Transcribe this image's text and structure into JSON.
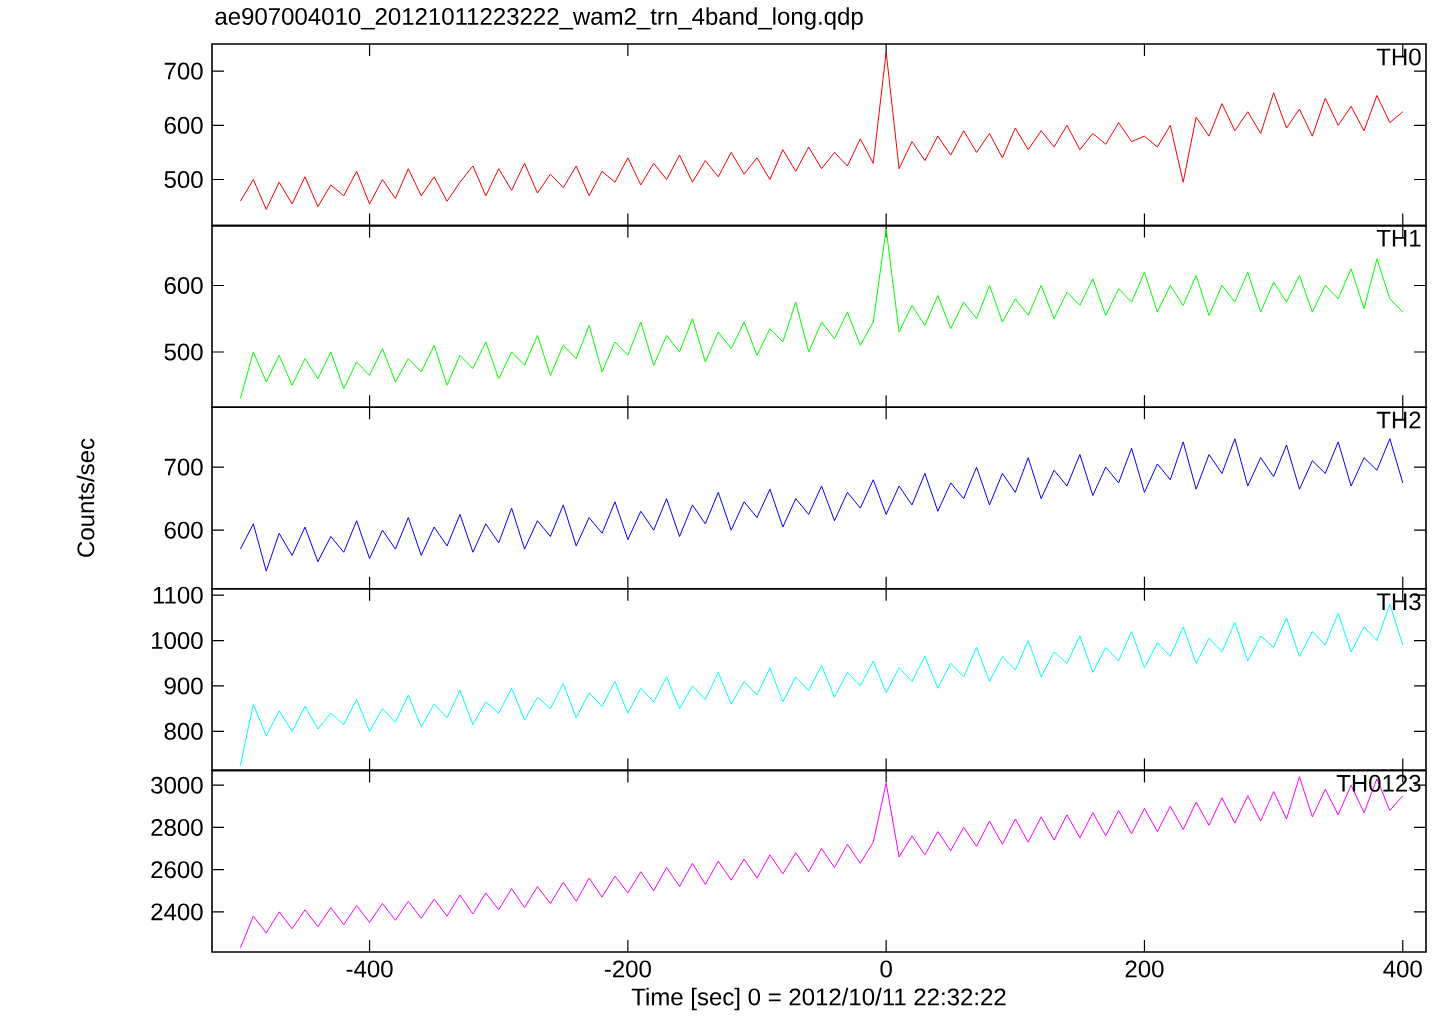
{
  "chart_data": [
    {
      "type": "line",
      "title": "ae907004010_20121011223222_wam2_trn_4band_long.qdp",
      "annotations": [
        "TH0"
      ],
      "color": "#ff0000",
      "tick_labels": "y",
      "xlim": [
        -522,
        418
      ],
      "xticks": [
        -400,
        -200,
        0,
        200,
        400
      ],
      "ylim": [
        415,
        750
      ],
      "yticks": [
        500,
        600,
        700
      ],
      "x": [
        -500,
        -490,
        -480,
        -470,
        -460,
        -450,
        -440,
        -430,
        -420,
        -410,
        -400,
        -390,
        -380,
        -370,
        -360,
        -350,
        -340,
        -330,
        -320,
        -310,
        -300,
        -290,
        -280,
        -270,
        -260,
        -250,
        -240,
        -230,
        -220,
        -210,
        -200,
        -190,
        -180,
        -170,
        -160,
        -150,
        -140,
        -130,
        -120,
        -110,
        -100,
        -90,
        -80,
        -70,
        -60,
        -50,
        -40,
        -30,
        -20,
        -10,
        0,
        10,
        20,
        30,
        40,
        50,
        60,
        70,
        80,
        90,
        100,
        110,
        120,
        130,
        140,
        150,
        160,
        170,
        180,
        190,
        200,
        210,
        220,
        230,
        240,
        250,
        260,
        270,
        280,
        290,
        300,
        310,
        320,
        330,
        340,
        350,
        360,
        370,
        380,
        390,
        400
      ],
      "values": [
        460,
        500,
        445,
        495,
        455,
        505,
        450,
        490,
        470,
        515,
        455,
        500,
        465,
        520,
        470,
        505,
        460,
        495,
        525,
        470,
        520,
        480,
        530,
        475,
        510,
        485,
        525,
        470,
        515,
        495,
        540,
        490,
        530,
        500,
        545,
        495,
        535,
        505,
        550,
        510,
        540,
        500,
        555,
        515,
        560,
        520,
        550,
        525,
        575,
        530,
        735,
        520,
        570,
        535,
        580,
        545,
        590,
        550,
        585,
        540,
        595,
        555,
        590,
        560,
        600,
        555,
        585,
        565,
        605,
        570,
        580,
        560,
        600,
        495,
        615,
        580,
        640,
        590,
        625,
        585,
        660,
        595,
        630,
        580,
        650,
        600,
        635,
        590,
        655,
        605,
        625
      ]
    },
    {
      "type": "line",
      "annotations": [
        "TH1"
      ],
      "color": "#00ff00",
      "tick_labels": "y",
      "xlim": [
        -522,
        418
      ],
      "xticks": [
        -400,
        -200,
        0,
        200,
        400
      ],
      "ylim": [
        417,
        690
      ],
      "yticks": [
        500,
        600
      ],
      "x": [
        -500,
        -490,
        -480,
        -470,
        -460,
        -450,
        -440,
        -430,
        -420,
        -410,
        -400,
        -390,
        -380,
        -370,
        -360,
        -350,
        -340,
        -330,
        -320,
        -310,
        -300,
        -290,
        -280,
        -270,
        -260,
        -250,
        -240,
        -230,
        -220,
        -210,
        -200,
        -190,
        -180,
        -170,
        -160,
        -150,
        -140,
        -130,
        -120,
        -110,
        -100,
        -90,
        -80,
        -70,
        -60,
        -50,
        -40,
        -30,
        -20,
        -10,
        0,
        10,
        20,
        30,
        40,
        50,
        60,
        70,
        80,
        90,
        100,
        110,
        120,
        130,
        140,
        150,
        160,
        170,
        180,
        190,
        200,
        210,
        220,
        230,
        240,
        250,
        260,
        270,
        280,
        290,
        300,
        310,
        320,
        330,
        340,
        350,
        360,
        370,
        380,
        390,
        400
      ],
      "values": [
        430,
        500,
        455,
        495,
        450,
        490,
        460,
        500,
        445,
        485,
        465,
        505,
        455,
        490,
        470,
        510,
        450,
        495,
        475,
        515,
        460,
        500,
        480,
        525,
        465,
        510,
        490,
        540,
        470,
        515,
        495,
        545,
        480,
        525,
        500,
        550,
        485,
        530,
        505,
        545,
        495,
        535,
        515,
        575,
        500,
        545,
        520,
        560,
        510,
        545,
        685,
        530,
        570,
        540,
        585,
        535,
        575,
        550,
        600,
        545,
        580,
        555,
        600,
        550,
        590,
        570,
        610,
        555,
        595,
        575,
        620,
        560,
        600,
        570,
        615,
        555,
        600,
        575,
        620,
        560,
        605,
        575,
        615,
        560,
        600,
        580,
        625,
        565,
        640,
        580,
        560
      ]
    },
    {
      "type": "line",
      "annotations": [
        "TH2"
      ],
      "color": "#0000ff",
      "tick_labels": "y",
      "ylabel": "Counts/sec",
      "xlim": [
        -522,
        418
      ],
      "xticks": [
        -400,
        -200,
        0,
        200,
        400
      ],
      "ylim": [
        507,
        795
      ],
      "yticks": [
        600,
        700
      ],
      "x": [
        -500,
        -490,
        -480,
        -470,
        -460,
        -450,
        -440,
        -430,
        -420,
        -410,
        -400,
        -390,
        -380,
        -370,
        -360,
        -350,
        -340,
        -330,
        -320,
        -310,
        -300,
        -290,
        -280,
        -270,
        -260,
        -250,
        -240,
        -230,
        -220,
        -210,
        -200,
        -190,
        -180,
        -170,
        -160,
        -150,
        -140,
        -130,
        -120,
        -110,
        -100,
        -90,
        -80,
        -70,
        -60,
        -50,
        -40,
        -30,
        -20,
        -10,
        0,
        10,
        20,
        30,
        40,
        50,
        60,
        70,
        80,
        90,
        100,
        110,
        120,
        130,
        140,
        150,
        160,
        170,
        180,
        190,
        200,
        210,
        220,
        230,
        240,
        250,
        260,
        270,
        280,
        290,
        300,
        310,
        320,
        330,
        340,
        350,
        360,
        370,
        380,
        390,
        400
      ],
      "values": [
        570,
        610,
        535,
        595,
        560,
        605,
        550,
        590,
        565,
        615,
        555,
        600,
        570,
        620,
        560,
        605,
        575,
        625,
        565,
        610,
        580,
        635,
        570,
        615,
        590,
        640,
        575,
        620,
        595,
        645,
        585,
        630,
        600,
        650,
        590,
        640,
        610,
        660,
        600,
        645,
        620,
        665,
        605,
        650,
        625,
        670,
        615,
        660,
        635,
        680,
        625,
        670,
        640,
        690,
        630,
        675,
        650,
        700,
        640,
        690,
        660,
        715,
        650,
        695,
        670,
        720,
        655,
        700,
        675,
        730,
        660,
        705,
        680,
        740,
        665,
        720,
        690,
        745,
        670,
        715,
        685,
        735,
        665,
        710,
        690,
        740,
        670,
        715,
        695,
        745,
        675
      ]
    },
    {
      "type": "line",
      "annotations": [
        "TH3"
      ],
      "color": "#00ffff",
      "tick_labels": "y",
      "xlim": [
        -522,
        418
      ],
      "xticks": [
        -400,
        -200,
        0,
        200,
        400
      ],
      "ylim": [
        714,
        1114
      ],
      "yticks": [
        800,
        900,
        1000,
        1100
      ],
      "x": [
        -500,
        -490,
        -480,
        -470,
        -460,
        -450,
        -440,
        -430,
        -420,
        -410,
        -400,
        -390,
        -380,
        -370,
        -360,
        -350,
        -340,
        -330,
        -320,
        -310,
        -300,
        -290,
        -280,
        -270,
        -260,
        -250,
        -240,
        -230,
        -220,
        -210,
        -200,
        -190,
        -180,
        -170,
        -160,
        -150,
        -140,
        -130,
        -120,
        -110,
        -100,
        -90,
        -80,
        -70,
        -60,
        -50,
        -40,
        -30,
        -20,
        -10,
        0,
        10,
        20,
        30,
        40,
        50,
        60,
        70,
        80,
        90,
        100,
        110,
        120,
        130,
        140,
        150,
        160,
        170,
        180,
        190,
        200,
        210,
        220,
        230,
        240,
        250,
        260,
        270,
        280,
        290,
        300,
        310,
        320,
        330,
        340,
        350,
        360,
        370,
        380,
        390,
        400
      ],
      "values": [
        725,
        860,
        790,
        845,
        800,
        855,
        805,
        840,
        815,
        870,
        800,
        850,
        820,
        880,
        810,
        860,
        830,
        890,
        815,
        865,
        840,
        895,
        825,
        875,
        850,
        905,
        830,
        885,
        855,
        910,
        840,
        895,
        865,
        920,
        850,
        900,
        870,
        930,
        860,
        910,
        880,
        940,
        865,
        920,
        890,
        945,
        875,
        930,
        900,
        955,
        885,
        940,
        910,
        965,
        895,
        950,
        920,
        985,
        910,
        965,
        935,
        1000,
        920,
        975,
        950,
        1010,
        930,
        985,
        955,
        1020,
        940,
        995,
        965,
        1030,
        950,
        1005,
        975,
        1040,
        955,
        1010,
        985,
        1050,
        965,
        1020,
        990,
        1060,
        975,
        1030,
        1000,
        1080,
        990
      ]
    },
    {
      "type": "line",
      "annotations": [
        "TH0123"
      ],
      "color": "#ff00ff",
      "xlabel": "Time [sec] 0 = 2012/10/11 22:32:22",
      "xlim": [
        -522,
        418
      ],
      "xticks": [
        -400,
        -200,
        0,
        200,
        400
      ],
      "ylim": [
        2210,
        3070
      ],
      "yticks": [
        2400,
        2600,
        2800,
        3000
      ],
      "x": [
        -500,
        -490,
        -480,
        -470,
        -460,
        -450,
        -440,
        -430,
        -420,
        -410,
        -400,
        -390,
        -380,
        -370,
        -360,
        -350,
        -340,
        -330,
        -320,
        -310,
        -300,
        -290,
        -280,
        -270,
        -260,
        -250,
        -240,
        -230,
        -220,
        -210,
        -200,
        -190,
        -180,
        -170,
        -160,
        -150,
        -140,
        -130,
        -120,
        -110,
        -100,
        -90,
        -80,
        -70,
        -60,
        -50,
        -40,
        -30,
        -20,
        -10,
        0,
        10,
        20,
        30,
        40,
        50,
        60,
        70,
        80,
        90,
        100,
        110,
        120,
        130,
        140,
        150,
        160,
        170,
        180,
        190,
        200,
        210,
        220,
        230,
        240,
        250,
        260,
        270,
        280,
        290,
        300,
        310,
        320,
        330,
        340,
        350,
        360,
        370,
        380,
        390,
        400
      ],
      "values": [
        2230,
        2380,
        2300,
        2400,
        2320,
        2410,
        2330,
        2420,
        2340,
        2430,
        2350,
        2440,
        2360,
        2450,
        2370,
        2460,
        2380,
        2480,
        2390,
        2490,
        2410,
        2510,
        2420,
        2520,
        2440,
        2540,
        2450,
        2560,
        2470,
        2570,
        2490,
        2590,
        2500,
        2610,
        2520,
        2630,
        2530,
        2640,
        2550,
        2650,
        2560,
        2670,
        2580,
        2680,
        2590,
        2700,
        2610,
        2720,
        2630,
        2730,
        3010,
        2660,
        2760,
        2670,
        2780,
        2690,
        2800,
        2710,
        2830,
        2720,
        2840,
        2730,
        2850,
        2740,
        2860,
        2750,
        2870,
        2760,
        2880,
        2770,
        2890,
        2780,
        2900,
        2790,
        2920,
        2810,
        2940,
        2820,
        2950,
        2830,
        2970,
        2840,
        3040,
        2850,
        2980,
        2860,
        3000,
        2870,
        3030,
        2880,
        2950
      ]
    }
  ]
}
